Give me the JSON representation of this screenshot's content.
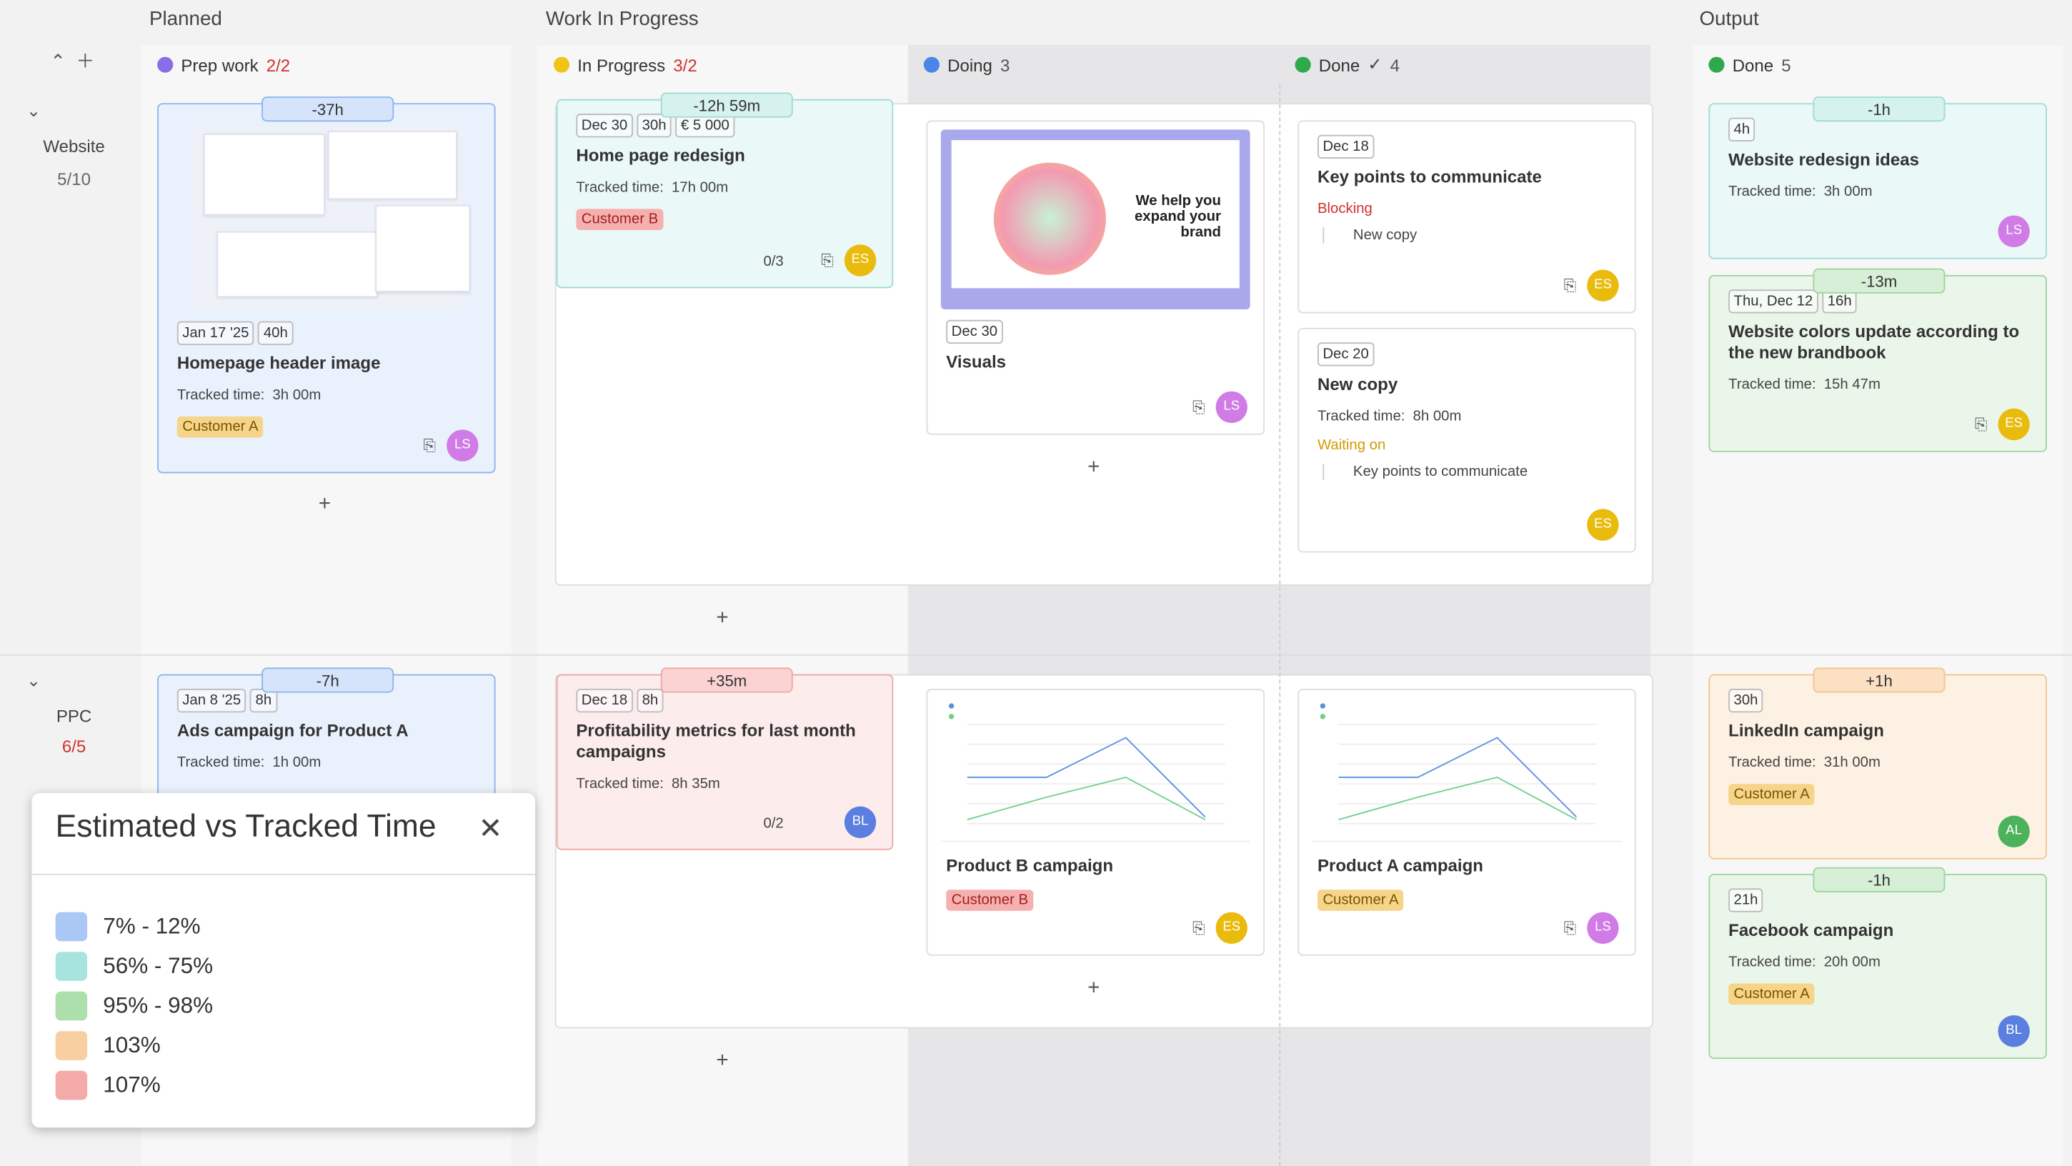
{
  "groups": [
    "Planned",
    "Work In Progress",
    "Output"
  ],
  "columns": [
    {
      "name": "Prep work",
      "count": "2/2"
    },
    {
      "name": "In Progress",
      "count": "3/2"
    },
    {
      "name": "Doing",
      "count": "3"
    },
    {
      "name": "Done",
      "count": "4"
    },
    {
      "name": "Done",
      "count": "5"
    }
  ],
  "lanes": [
    {
      "name": "Website",
      "count": "5/10"
    },
    {
      "name": "PPC",
      "count": "6/5"
    }
  ],
  "labels": {
    "tracked": "Tracked time:"
  },
  "cards": [
    {
      "time": "-37h",
      "tags": [
        "Jan 17 '25",
        "40h"
      ],
      "title": "Homepage header image",
      "tracked": "3h 00m",
      "customer": "Customer A",
      "avatar": "LS"
    },
    {
      "time": "-12h 59m",
      "tags": [
        "Dec 30",
        "30h",
        "€ 5 000"
      ],
      "title": "Home page redesign",
      "tracked": "17h 00m",
      "customer": "Customer B",
      "subtasks": "0/3",
      "avatar": "ES"
    },
    {
      "image_text": "We help you expand your brand",
      "tags": [
        "Dec 30"
      ],
      "title": "Visuals",
      "avatar": "LS"
    },
    {
      "tags": [
        "Dec 18"
      ],
      "title": "Key points to communicate",
      "relation": {
        "type": "Blocking",
        "item": "New copy"
      },
      "avatar": "ES"
    },
    {
      "tags": [
        "Dec 20"
      ],
      "title": "New copy",
      "tracked": "8h 00m",
      "relation": {
        "type": "Waiting on",
        "item": "Key points to communicate"
      },
      "avatar": "ES"
    },
    {
      "time": "-1h",
      "tags": [
        "4h"
      ],
      "title": "Website redesign ideas",
      "tracked": "3h 00m",
      "avatar": "LS"
    },
    {
      "time": "-13m",
      "tags": [
        "Thu, Dec 12",
        "16h"
      ],
      "title": "Website colors update according to the new brandbook",
      "tracked": "15h 47m",
      "avatar": "ES"
    },
    {
      "time": "-7h",
      "tags": [
        "Jan 8 '25",
        "8h"
      ],
      "title": "Ads campaign for Product A",
      "tracked": "1h 00m"
    },
    {
      "time": "+35m",
      "tags": [
        "Dec 18",
        "8h"
      ],
      "title": "Profitability metrics for last month campaigns",
      "tracked": "8h 35m",
      "subtasks": "0/2",
      "avatar": "BL"
    },
    {
      "title": "Product B campaign",
      "customer": "Customer B",
      "avatar": "ES"
    },
    {
      "title": "Product A campaign",
      "customer": "Customer A",
      "avatar": "LS"
    },
    {
      "time": "+1h",
      "tags": [
        "30h"
      ],
      "title": "LinkedIn campaign",
      "tracked": "31h 00m",
      "customer": "Customer A",
      "avatar": "AL"
    },
    {
      "time": "-1h",
      "tags": [
        "21h"
      ],
      "title": "Facebook campaign",
      "tracked": "20h 00m",
      "customer": "Customer A",
      "avatar": "BL"
    }
  ],
  "legend": {
    "title": "Estimated vs Tracked Time",
    "items": [
      {
        "label": "7% - 12%",
        "color": "#a9c8f5"
      },
      {
        "label": "56% - 75%",
        "color": "#a8e4de"
      },
      {
        "label": "95% - 98%",
        "color": "#acdfac"
      },
      {
        "label": "103%",
        "color": "#f8cfa0"
      },
      {
        "label": "107%",
        "color": "#f5aaaa"
      }
    ]
  }
}
